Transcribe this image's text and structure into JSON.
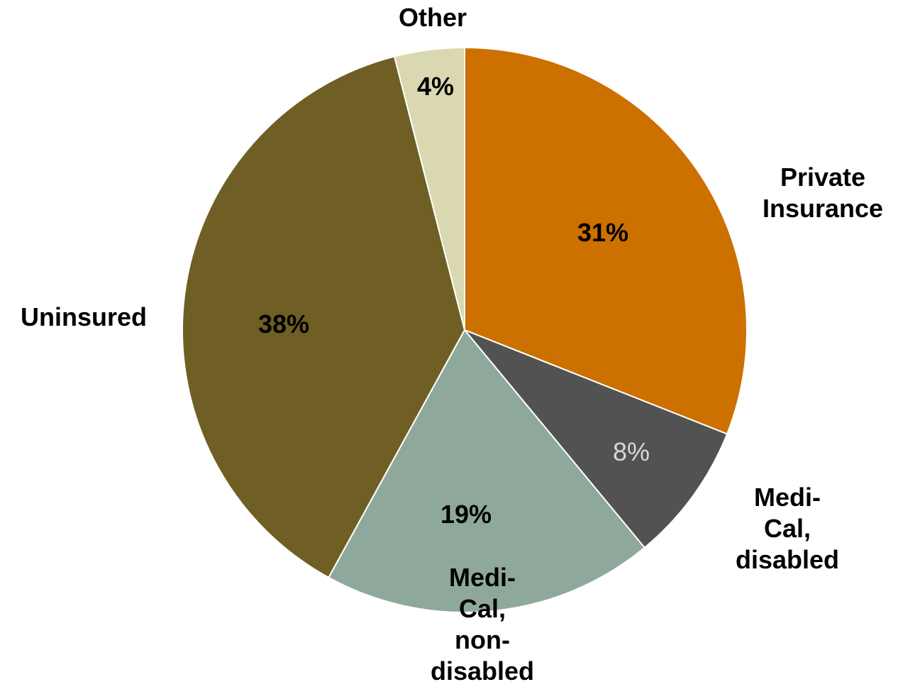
{
  "chart_data": {
    "type": "pie",
    "categories": [
      "Private Insurance",
      "Medi-Cal, disabled",
      "Medi-Cal, non-disabled",
      "Uninsured",
      "Other"
    ],
    "values": [
      31,
      8,
      19,
      38,
      4
    ],
    "value_labels": [
      "31%",
      "8%",
      "19%",
      "38%",
      "4%"
    ],
    "colors": [
      "#cc7000",
      "#525252",
      "#8fa89c",
      "#6f5f24",
      "#d9d8b0"
    ]
  }
}
